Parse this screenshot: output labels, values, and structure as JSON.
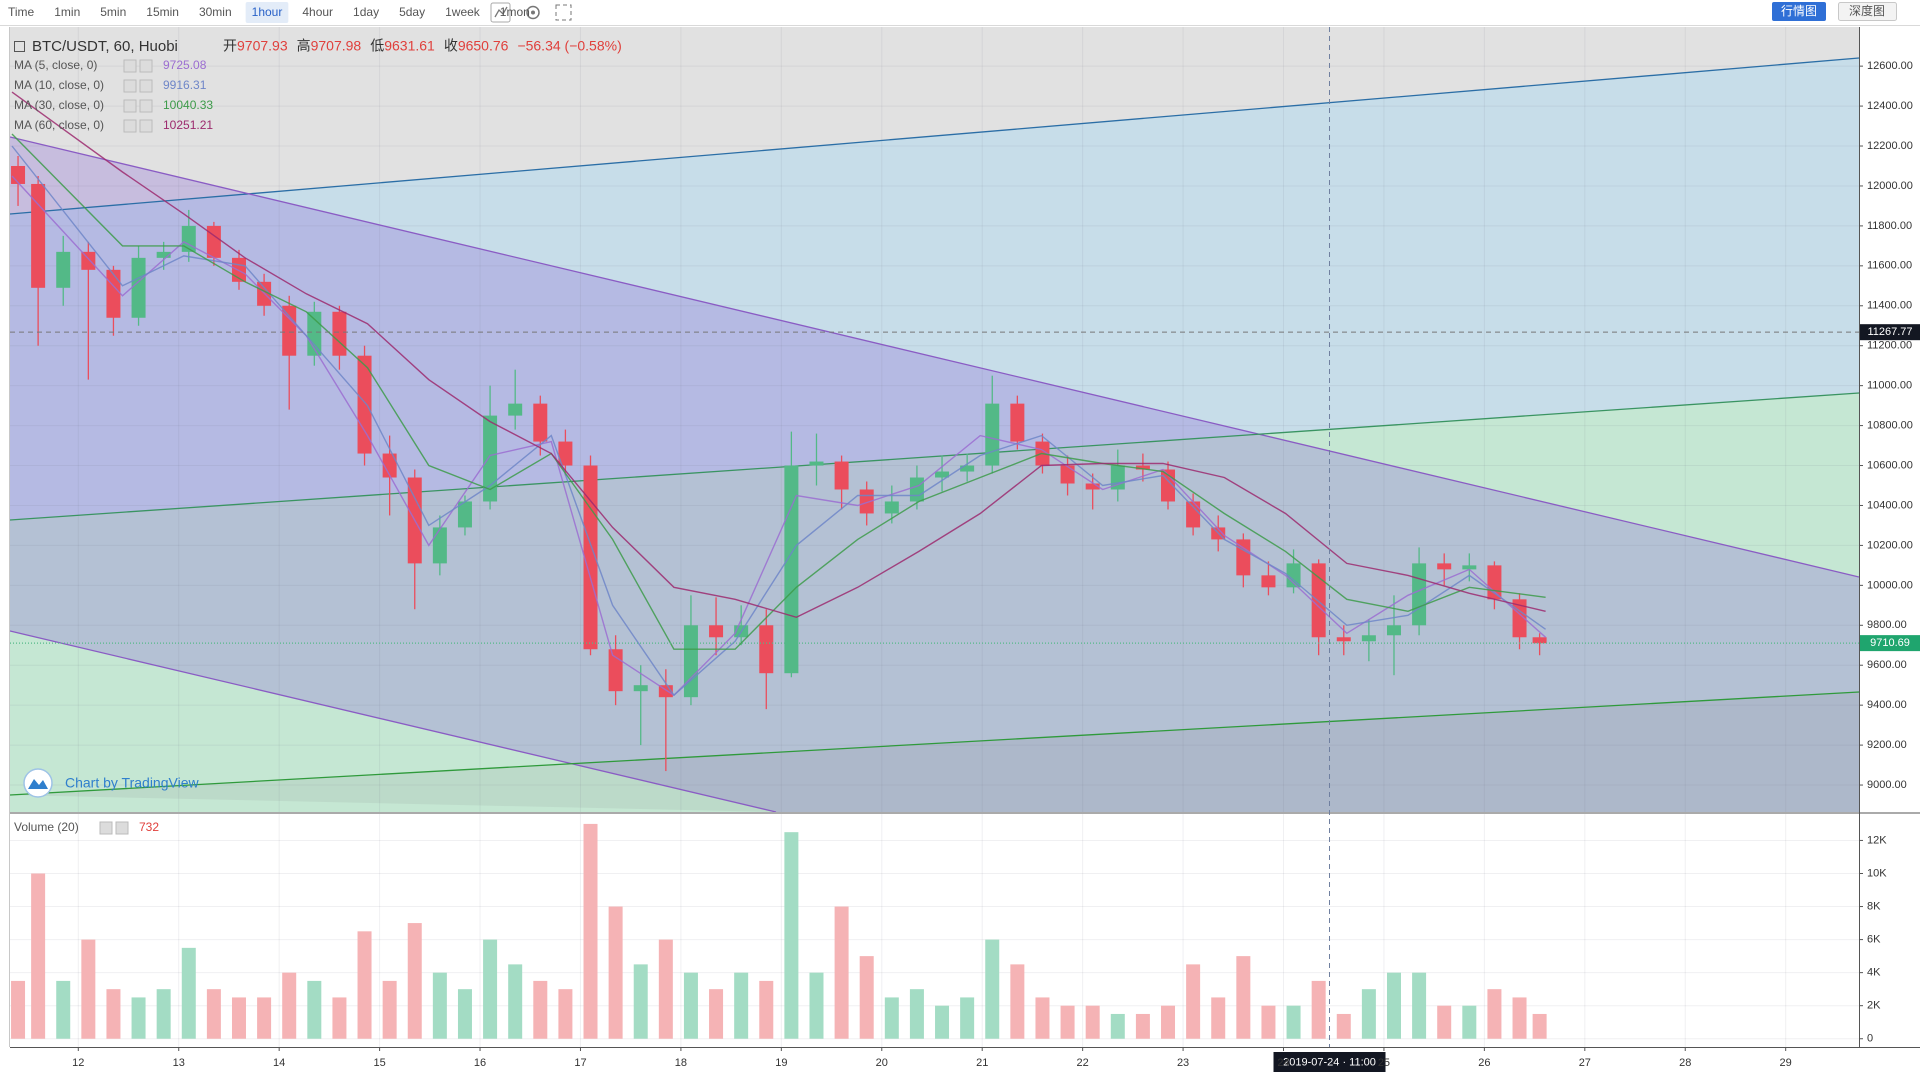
{
  "toolbar": {
    "intervals": [
      "Time",
      "1min",
      "5min",
      "15min",
      "30min",
      "1hour",
      "4hour",
      "1day",
      "5day",
      "1week",
      "1mon"
    ],
    "active": "1hour"
  },
  "view_buttons": [
    "行情图",
    "深度图"
  ],
  "chart_data": [
    {
      "type": "candlestick",
      "symbol": "BTC/USDT, 60, Huobi",
      "ohlc_legend": [
        {
          "label": "开",
          "value": 9707.93
        },
        {
          "label": "高",
          "value": 9707.98
        },
        {
          "label": "低",
          "value": 9631.61
        },
        {
          "label": "收",
          "value": 9650.76
        }
      ],
      "change": "−56.34 (−0.58%)",
      "x": [
        11.4,
        11.6,
        11.85,
        12.1,
        12.35,
        12.6,
        12.85,
        13.1,
        13.35,
        13.6,
        13.85,
        14.1,
        14.35,
        14.6,
        14.85,
        15.1,
        15.35,
        15.6,
        15.85,
        16.1,
        16.35,
        16.6,
        16.85,
        17.1,
        17.35,
        17.6,
        17.85,
        18.1,
        18.35,
        18.6,
        18.85,
        19.1,
        19.35,
        19.6,
        19.85,
        20.1,
        20.35,
        20.6,
        20.85,
        21.1,
        21.35,
        21.6,
        21.85,
        22.1,
        22.35,
        22.6,
        22.85,
        23.1,
        23.35,
        23.6,
        23.85,
        24.1,
        24.35,
        24.6,
        24.85,
        25.1,
        25.35,
        25.6,
        25.85,
        26.1,
        26.35,
        26.55
      ],
      "open": [
        12100,
        12010,
        11490,
        11670,
        11580,
        11340,
        11640,
        11670,
        11800,
        11640,
        11520,
        11400,
        11150,
        11370,
        11150,
        10660,
        10540,
        10110,
        10290,
        10420,
        10850,
        10910,
        10720,
        10600,
        9680,
        9470,
        9500,
        9440,
        9800,
        9740,
        9800,
        9560,
        10600,
        10620,
        10480,
        10360,
        10420,
        10540,
        10570,
        10600,
        10910,
        10720,
        10600,
        10510,
        10480,
        10600,
        10580,
        10420,
        10290,
        10230,
        10050,
        9990,
        10110,
        9740,
        9720,
        9750,
        9800,
        10110,
        10080,
        10100,
        9930,
        9740
      ],
      "high": [
        12150,
        12050,
        11750,
        11720,
        11600,
        11700,
        11720,
        11880,
        11820,
        11680,
        11560,
        11450,
        11420,
        11400,
        11200,
        10750,
        10580,
        10350,
        10450,
        11000,
        11080,
        10950,
        10780,
        10650,
        9750,
        9600,
        9580,
        9950,
        9940,
        9900,
        9880,
        10770,
        10760,
        10650,
        10520,
        10500,
        10600,
        10650,
        10660,
        11050,
        10950,
        10760,
        10650,
        10560,
        10680,
        10660,
        10620,
        10460,
        10350,
        10260,
        10120,
        10180,
        10130,
        9800,
        9830,
        9950,
        10190,
        10160,
        10160,
        10120,
        9960,
        9760
      ],
      "low": [
        11900,
        11200,
        11400,
        11030,
        11250,
        11300,
        11580,
        11620,
        11600,
        11480,
        11350,
        10880,
        11100,
        11080,
        10600,
        10350,
        9880,
        10050,
        10250,
        10380,
        10780,
        10650,
        10550,
        9650,
        9400,
        9200,
        9070,
        9400,
        9650,
        9700,
        9380,
        9540,
        10500,
        10380,
        10300,
        10310,
        10380,
        10470,
        10520,
        10560,
        10680,
        10560,
        10450,
        10380,
        10420,
        10520,
        10380,
        10250,
        10170,
        9990,
        9950,
        9960,
        9650,
        9650,
        9620,
        9550,
        9750,
        10000,
        10020,
        9880,
        9680,
        9650
      ],
      "close": [
        12010,
        11490,
        11670,
        11580,
        11340,
        11640,
        11670,
        11800,
        11640,
        11520,
        11400,
        11150,
        11370,
        11150,
        10660,
        10540,
        10110,
        10290,
        10420,
        10850,
        10910,
        10720,
        10600,
        9680,
        9470,
        9500,
        9440,
        9800,
        9740,
        9800,
        9560,
        10600,
        10620,
        10480,
        10360,
        10420,
        10540,
        10570,
        10600,
        10910,
        10720,
        10600,
        10510,
        10480,
        10600,
        10580,
        10420,
        10290,
        10230,
        10050,
        9990,
        10110,
        9740,
        9720,
        9750,
        9800,
        10110,
        10080,
        10100,
        9930,
        9740,
        9710
      ],
      "up_color": "#53b987",
      "down_color": "#eb4d5c",
      "series": [
        {
          "name": "MA (5, close, 0)",
          "color": "#9b6dd1",
          "last_value": 9725.08,
          "x": [
            11.34,
            12.44,
            13.05,
            13.66,
            14.27,
            14.88,
            15.49,
            16.1,
            16.71,
            17.32,
            17.93,
            18.54,
            19.15,
            19.76,
            20.37,
            20.98,
            21.59,
            22.2,
            22.8,
            23.41,
            24.02,
            24.63,
            25.24,
            25.85,
            26.61
          ],
          "values": [
            12050,
            11450,
            11720,
            11560,
            11250,
            10750,
            10200,
            10650,
            10720,
            9650,
            9450,
            9760,
            10450,
            10400,
            10500,
            10750,
            10680,
            10480,
            10580,
            10250,
            10050,
            9760,
            9950,
            10080,
            9740
          ]
        },
        {
          "name": "MA (10, close, 0)",
          "color": "#6f86c8",
          "last_value": 9916.31,
          "x": [
            11.34,
            12.44,
            13.05,
            13.66,
            14.27,
            14.88,
            15.49,
            16.1,
            16.71,
            17.32,
            17.93,
            18.54,
            19.15,
            19.76,
            20.37,
            20.98,
            21.59,
            22.2,
            22.8,
            23.41,
            24.02,
            24.63,
            25.24,
            25.85,
            26.61
          ],
          "values": [
            12200,
            11500,
            11650,
            11600,
            11250,
            10900,
            10300,
            10500,
            10750,
            9900,
            9450,
            9720,
            10200,
            10450,
            10450,
            10650,
            10750,
            10500,
            10550,
            10230,
            10060,
            9800,
            9850,
            10050,
            9780
          ]
        },
        {
          "name": "MA (30, close, 0)",
          "color": "#3d9b4a",
          "last_value": 10040.33,
          "x": [
            11.34,
            12.44,
            13.05,
            13.66,
            14.27,
            14.88,
            15.49,
            16.1,
            16.71,
            17.32,
            17.93,
            18.54,
            19.15,
            19.76,
            20.37,
            20.98,
            21.59,
            22.2,
            22.8,
            23.41,
            24.02,
            24.63,
            25.24,
            25.85,
            26.61
          ],
          "values": [
            12260,
            11700,
            11700,
            11520,
            11370,
            11090,
            10600,
            10480,
            10660,
            10230,
            9680,
            9680,
            9990,
            10230,
            10420,
            10540,
            10660,
            10610,
            10570,
            10360,
            10170,
            9930,
            9870,
            9990,
            9940
          ]
        },
        {
          "name": "MA (60, close, 0)",
          "color": "#9c2a6e",
          "last_value": 10251.21,
          "x": [
            11.34,
            12.44,
            13.05,
            13.66,
            14.27,
            14.88,
            15.49,
            16.1,
            16.71,
            17.32,
            17.93,
            18.54,
            19.15,
            19.76,
            20.37,
            20.98,
            21.59,
            22.2,
            22.8,
            23.41,
            24.02,
            24.63,
            25.24,
            25.85,
            26.61
          ],
          "values": [
            12470,
            12070,
            11860,
            11640,
            11460,
            11310,
            11030,
            10820,
            10660,
            10290,
            9990,
            9930,
            9840,
            9990,
            10170,
            10360,
            10600,
            10610,
            10610,
            10540,
            10360,
            10110,
            10050,
            9960,
            9870
          ]
        }
      ],
      "xlim": [
        11.32,
        29.73
      ],
      "ylim": [
        8865,
        12796
      ],
      "yticks": [
        {
          "value": 9000,
          "label": "9000.00"
        },
        {
          "value": 9200,
          "label": "9200.00"
        },
        {
          "value": 9400,
          "label": "9400.00"
        },
        {
          "value": 9600,
          "label": "9600.00"
        },
        {
          "value": 9800,
          "label": "9800.00"
        },
        {
          "value": 10000,
          "label": "10000.00"
        },
        {
          "value": 10200,
          "label": "10200.00"
        },
        {
          "value": 10400,
          "label": "10400.00"
        },
        {
          "value": 10600,
          "label": "10600.00"
        },
        {
          "value": 10800,
          "label": "10800.00"
        },
        {
          "value": 11000,
          "label": "11000.00"
        },
        {
          "value": 11200,
          "label": "11200.00"
        },
        {
          "value": 11400,
          "label": "11400.00"
        },
        {
          "value": 11600,
          "label": "11600.00"
        },
        {
          "value": 11800,
          "label": "11800.00"
        },
        {
          "value": 12000,
          "label": "12000.00"
        },
        {
          "value": 12200,
          "label": "12200.00"
        },
        {
          "value": 12400,
          "label": "12400.00"
        },
        {
          "value": 12600,
          "label": "12600.00"
        }
      ],
      "crosshair_price": 11267.77,
      "last_price": 9710.69,
      "watermark": "Chart by TradingView"
    },
    {
      "type": "bar",
      "title": "Volume (20)",
      "last_value": 732,
      "x": [
        11.4,
        11.6,
        11.85,
        12.1,
        12.35,
        12.6,
        12.85,
        13.1,
        13.35,
        13.6,
        13.85,
        14.1,
        14.35,
        14.6,
        14.85,
        15.1,
        15.35,
        15.6,
        15.85,
        16.1,
        16.35,
        16.6,
        16.85,
        17.1,
        17.35,
        17.6,
        17.85,
        18.1,
        18.35,
        18.6,
        18.85,
        19.1,
        19.35,
        19.6,
        19.85,
        20.1,
        20.35,
        20.6,
        20.85,
        21.1,
        21.35,
        21.6,
        21.85,
        22.1,
        22.35,
        22.6,
        22.85,
        23.1,
        23.35,
        23.6,
        23.85,
        24.1,
        24.35,
        24.6,
        24.85,
        25.1,
        25.35,
        25.6,
        25.85,
        26.1,
        26.35,
        26.55
      ],
      "values": [
        3500,
        10000,
        3500,
        6000,
        3000,
        2500,
        3000,
        5500,
        3000,
        2500,
        2500,
        4000,
        3500,
        2500,
        6500,
        3500,
        7000,
        4000,
        3000,
        6000,
        4500,
        3500,
        3000,
        13000,
        8000,
        4500,
        6000,
        4000,
        3000,
        4000,
        3500,
        12500,
        4000,
        8000,
        5000,
        2500,
        3000,
        2000,
        2500,
        6000,
        4500,
        2500,
        2000,
        2000,
        1500,
        1500,
        2000,
        4500,
        2500,
        5000,
        2000,
        2000,
        3500,
        1500,
        3000,
        4000,
        4000,
        2000,
        2000,
        3000,
        2500,
        1500
      ],
      "up_color": "#a3dcc4",
      "down_color": "#f5b3b5",
      "xlim": [
        11.32,
        29.73
      ],
      "ylim": [
        -500,
        13600
      ],
      "yticks": [
        0,
        {
          "value": 2000,
          "label": "2K"
        },
        {
          "value": 4000,
          "label": "4K"
        },
        {
          "value": 6000,
          "label": "6K"
        },
        {
          "value": 8000,
          "label": "8K"
        },
        {
          "value": 10000,
          "label": "10K"
        },
        {
          "value": 12000,
          "label": "12K"
        }
      ],
      "xticks": [
        12,
        13,
        14,
        15,
        16,
        17,
        18,
        19,
        20,
        21,
        22,
        23,
        24,
        25,
        26,
        27,
        28,
        29
      ],
      "crosshair_time": {
        "value": 24.458,
        "label": "2019-07-24 · 11:00"
      }
    }
  ]
}
